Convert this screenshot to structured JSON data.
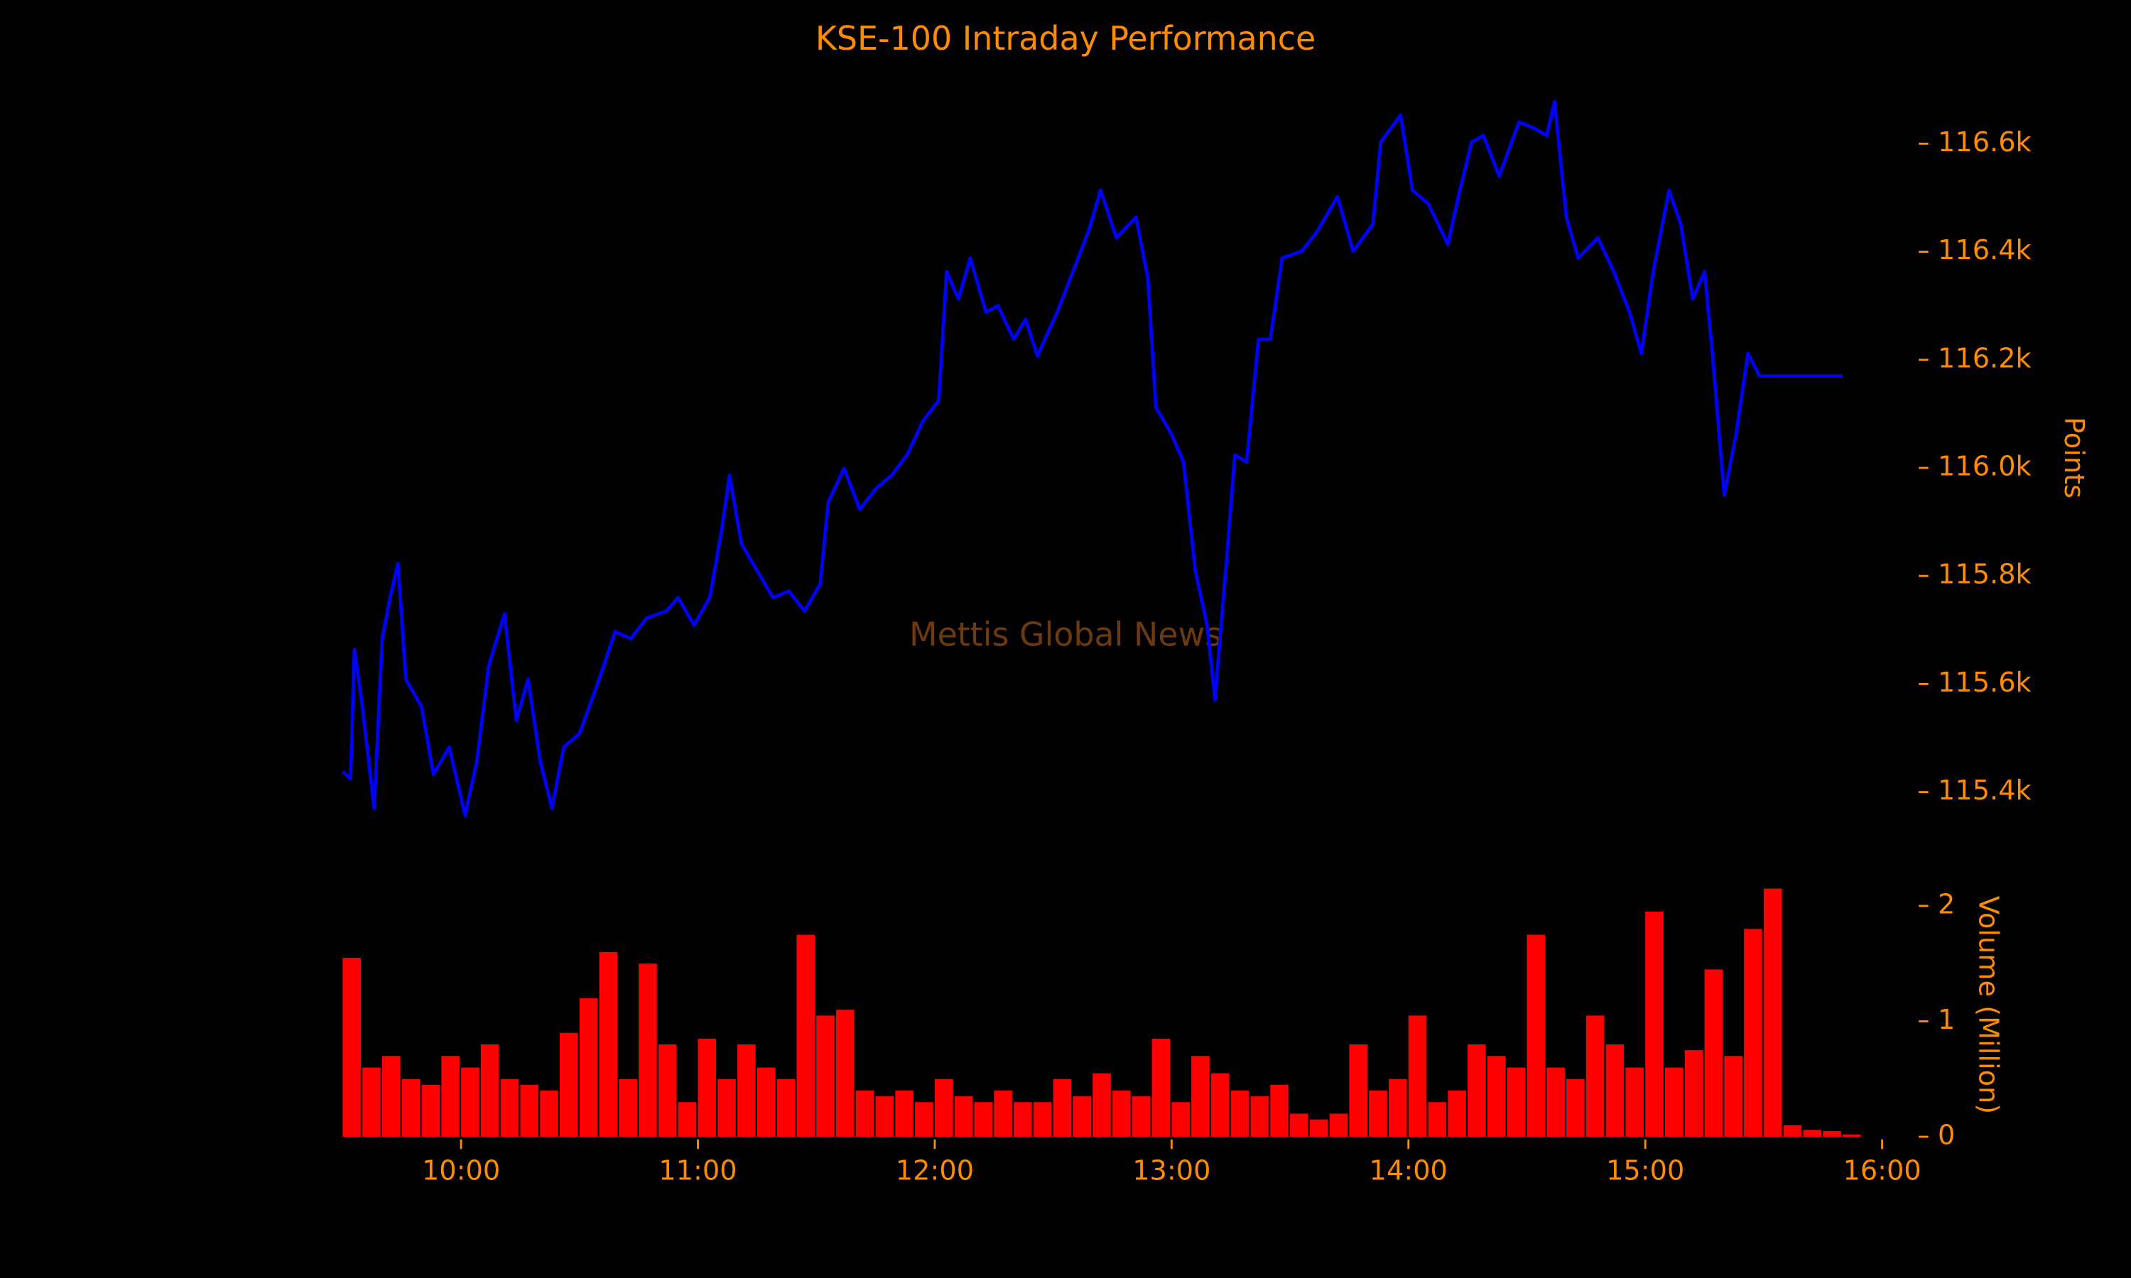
{
  "chart_data": [
    {
      "type": "line",
      "title": "KSE-100 Intraday Performance",
      "watermark": "Mettis Global News",
      "ylabel": "Points",
      "color": "#0000ff",
      "x": [
        "09:30",
        "09:32",
        "09:33",
        "09:35",
        "09:38",
        "09:40",
        "09:42",
        "09:44",
        "09:46",
        "09:50",
        "09:53",
        "09:57",
        "10:01",
        "10:04",
        "10:07",
        "10:11",
        "10:14",
        "10:17",
        "10:20",
        "10:23",
        "10:26",
        "10:30",
        "10:35",
        "10:39",
        "10:43",
        "10:47",
        "10:52",
        "10:55",
        "10:59",
        "11:03",
        "11:06",
        "11:08",
        "11:11",
        "11:15",
        "11:19",
        "11:23",
        "11:27",
        "11:31",
        "11:33",
        "11:37",
        "11:41",
        "11:45",
        "11:49",
        "11:53",
        "11:57",
        "12:01",
        "12:03",
        "12:06",
        "12:09",
        "12:13",
        "12:16",
        "12:20",
        "12:23",
        "12:26",
        "12:31",
        "12:35",
        "12:39",
        "12:42",
        "12:46",
        "12:51",
        "12:54",
        "12:56",
        "13:00",
        "13:03",
        "13:06",
        "13:09",
        "13:11",
        "13:14",
        "13:16",
        "13:19",
        "13:22",
        "13:25",
        "13:28",
        "13:33",
        "13:37",
        "13:42",
        "13:46",
        "13:51",
        "13:53",
        "13:58",
        "14:01",
        "14:05",
        "14:10",
        "14:13",
        "14:16",
        "14:19",
        "14:23",
        "14:28",
        "14:32",
        "14:35",
        "14:37",
        "14:40",
        "14:43",
        "14:48",
        "14:52",
        "14:56",
        "14:59",
        "15:02",
        "15:06",
        "15:09",
        "15:12",
        "15:15",
        "15:17",
        "15:20",
        "15:23",
        "15:26",
        "15:29",
        "15:50"
      ],
      "values": [
        115438,
        115425,
        115664,
        115558,
        115370,
        115684,
        115760,
        115823,
        115609,
        115558,
        115433,
        115483,
        115357,
        115458,
        115634,
        115730,
        115533,
        115609,
        115458,
        115370,
        115483,
        115508,
        115609,
        115697,
        115684,
        115722,
        115735,
        115760,
        115709,
        115760,
        115885,
        115986,
        115860,
        115810,
        115760,
        115772,
        115735,
        115785,
        115936,
        115999,
        115923,
        115961,
        115986,
        116024,
        116087,
        116125,
        116363,
        116313,
        116388,
        116288,
        116300,
        116238,
        116275,
        116207,
        116288,
        116363,
        116439,
        116514,
        116426,
        116464,
        116351,
        116112,
        116062,
        116011,
        115810,
        115709,
        115571,
        115835,
        116024,
        116011,
        116238,
        116238,
        116388,
        116401,
        116439,
        116502,
        116401,
        116451,
        116603,
        116653,
        116514,
        116489,
        116414,
        116514,
        116603,
        116615,
        116540,
        116640,
        116628,
        116615,
        116678,
        116464,
        116388,
        116426,
        116363,
        116288,
        116212,
        116363,
        116514,
        116451,
        116313,
        116363,
        116212,
        115949,
        116062,
        116212,
        116170,
        116170
      ],
      "xlim": [
        "09:30",
        "16:00"
      ],
      "ylim": [
        115300,
        116700
      ],
      "yticks": [
        {
          "value": 115400,
          "label": "115.4k"
        },
        {
          "value": 115600,
          "label": "115.6k"
        },
        {
          "value": 115800,
          "label": "115.8k"
        },
        {
          "value": 116000,
          "label": "116.0k"
        },
        {
          "value": 116200,
          "label": "116.2k"
        },
        {
          "value": 116400,
          "label": "116.4k"
        },
        {
          "value": 116600,
          "label": "116.6k"
        }
      ]
    },
    {
      "type": "bar",
      "ylabel": "Volume (Million)",
      "color": "#ff0000",
      "x": [
        "09:30",
        "09:35",
        "09:40",
        "09:45",
        "09:50",
        "09:55",
        "10:00",
        "10:05",
        "10:10",
        "10:15",
        "10:20",
        "10:25",
        "10:30",
        "10:35",
        "10:40",
        "10:45",
        "10:50",
        "10:55",
        "11:00",
        "11:05",
        "11:10",
        "11:15",
        "11:20",
        "11:25",
        "11:30",
        "11:35",
        "11:40",
        "11:45",
        "11:50",
        "11:55",
        "12:00",
        "12:05",
        "12:10",
        "12:15",
        "12:20",
        "12:25",
        "12:30",
        "12:35",
        "12:40",
        "12:45",
        "12:50",
        "12:55",
        "13:00",
        "13:05",
        "13:10",
        "13:15",
        "13:20",
        "13:25",
        "13:30",
        "13:35",
        "13:40",
        "13:45",
        "13:50",
        "13:55",
        "14:00",
        "14:05",
        "14:10",
        "14:15",
        "14:20",
        "14:25",
        "14:30",
        "14:35",
        "14:40",
        "14:45",
        "14:50",
        "14:55",
        "15:00",
        "15:05",
        "15:10",
        "15:15",
        "15:20",
        "15:25",
        "15:30",
        "15:35",
        "15:40",
        "15:45",
        "15:50"
      ],
      "values": [
        1.55,
        0.6,
        0.7,
        0.5,
        0.45,
        0.7,
        0.6,
        0.8,
        0.5,
        0.45,
        0.4,
        0.9,
        1.2,
        1.6,
        0.5,
        1.5,
        0.8,
        0.3,
        0.85,
        0.5,
        0.8,
        0.6,
        0.5,
        1.75,
        1.05,
        1.1,
        0.4,
        0.35,
        0.4,
        0.3,
        0.5,
        0.35,
        0.3,
        0.4,
        0.3,
        0.3,
        0.5,
        0.35,
        0.55,
        0.4,
        0.35,
        0.85,
        0.3,
        0.7,
        0.55,
        0.4,
        0.35,
        0.45,
        0.2,
        0.15,
        0.2,
        0.8,
        0.4,
        0.5,
        1.05,
        0.3,
        0.4,
        0.8,
        0.7,
        0.6,
        1.75,
        0.6,
        0.5,
        1.05,
        0.8,
        0.6,
        1.95,
        0.6,
        0.75,
        1.45,
        0.7,
        1.8,
        2.15,
        0.1,
        0.06,
        0.05,
        0.02
      ],
      "xlim": [
        "09:30",
        "16:00"
      ],
      "xticks": [
        "10:00",
        "11:00",
        "12:00",
        "13:00",
        "14:00",
        "15:00",
        "16:00"
      ],
      "ylim": [
        0,
        2.2
      ],
      "yticks": [
        0,
        1,
        2
      ]
    }
  ]
}
